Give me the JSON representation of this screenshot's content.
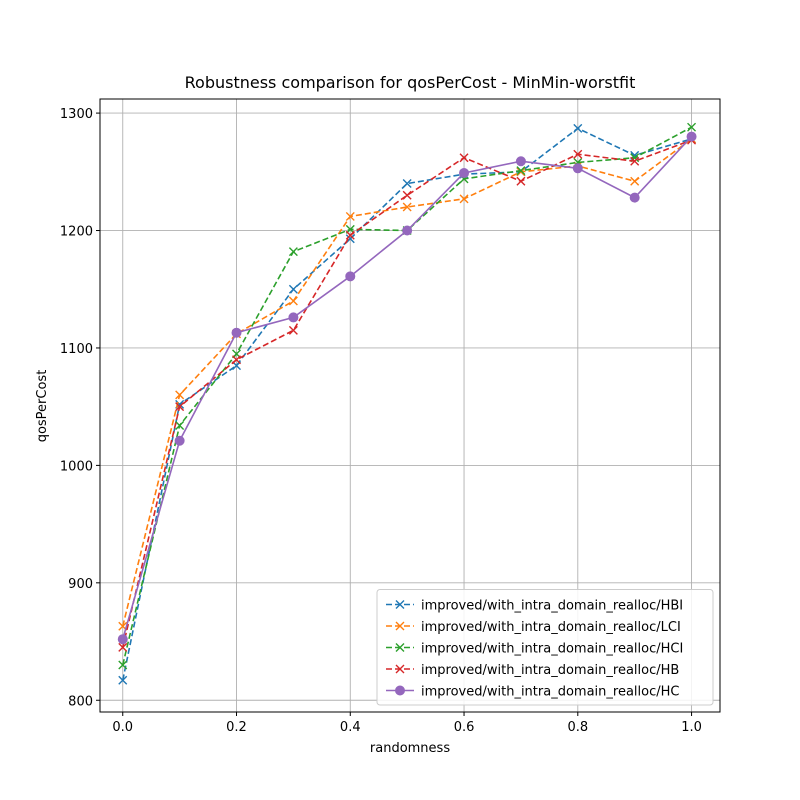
{
  "chart_data": {
    "type": "line",
    "title": "Robustness comparison for qosPerCost - MinMin-worstfit",
    "xlabel": "randomness",
    "ylabel": "qosPerCost",
    "xlim": [
      -0.04,
      1.05
    ],
    "ylim": [
      790,
      1312
    ],
    "xticks": [
      0.0,
      0.2,
      0.4,
      0.6,
      0.8,
      1.0
    ],
    "xtick_labels": [
      "0.0",
      "0.2",
      "0.4",
      "0.6",
      "0.8",
      "1.0"
    ],
    "yticks": [
      800,
      900,
      1000,
      1100,
      1200,
      1300
    ],
    "ytick_labels": [
      "800",
      "900",
      "1000",
      "1100",
      "1200",
      "1300"
    ],
    "grid": true,
    "legend_position": "bottom-right",
    "x": [
      0.0,
      0.1,
      0.2,
      0.3,
      0.4,
      0.5,
      0.6,
      0.7,
      0.8,
      0.9,
      1.0
    ],
    "series": [
      {
        "name": "improved/with_intra_domain_realloc/HBI",
        "color": "#1f77b4",
        "marker": "x",
        "dashed": true,
        "values": [
          817,
          1052,
          1085,
          1150,
          1193,
          1240,
          1248,
          1250,
          1287,
          1264,
          1278
        ]
      },
      {
        "name": "improved/with_intra_domain_realloc/LCI",
        "color": "#ff7f0e",
        "marker": "x",
        "dashed": true,
        "values": [
          863,
          1060,
          1112,
          1140,
          1212,
          1220,
          1227,
          1250,
          1255,
          1242,
          1278
        ]
      },
      {
        "name": "improved/with_intra_domain_realloc/HCI",
        "color": "#2ca02c",
        "marker": "x",
        "dashed": true,
        "values": [
          830,
          1034,
          1095,
          1182,
          1201,
          1200,
          1244,
          1251,
          1258,
          1262,
          1288
        ]
      },
      {
        "name": "improved/with_intra_domain_realloc/HB",
        "color": "#d62728",
        "marker": "x",
        "dashed": true,
        "values": [
          845,
          1050,
          1090,
          1115,
          1196,
          1230,
          1262,
          1242,
          1265,
          1259,
          1277
        ]
      },
      {
        "name": "improved/with_intra_domain_realloc/HC",
        "color": "#9467bd",
        "marker": "o",
        "dashed": false,
        "values": [
          852,
          1021,
          1113,
          1126,
          1161,
          1200,
          1249,
          1259,
          1253,
          1228,
          1280
        ]
      }
    ]
  }
}
